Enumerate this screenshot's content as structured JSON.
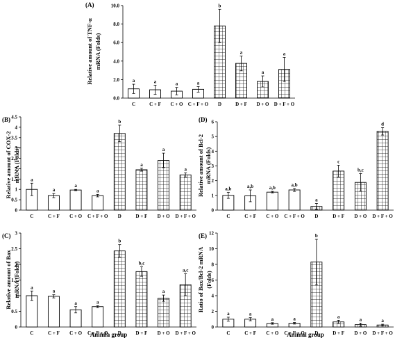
{
  "chart_data": [
    {
      "panel": "(A)",
      "type": "bar",
      "ylabel": [
        "Relative amount of TNF-α",
        "mRNA (Folds)"
      ],
      "xlabel": "",
      "ylim": [
        0,
        10
      ],
      "yticks": [
        0,
        2,
        4,
        6,
        8,
        10
      ],
      "ytick_labels": [
        "0.0",
        "2.0",
        "4.0",
        "6.0",
        "8.0",
        "10.0"
      ],
      "categories": [
        "C",
        "C + F",
        "C + O",
        "C + F + O",
        "D",
        "D + F",
        "D + O",
        "D + F + O"
      ],
      "values": [
        1.0,
        0.9,
        0.75,
        0.95,
        7.8,
        3.75,
        1.8,
        3.1
      ],
      "errors": [
        0.5,
        0.5,
        0.4,
        0.3,
        1.8,
        0.8,
        0.6,
        1.3
      ],
      "labels": [
        "a",
        "a",
        "a",
        "a",
        "b",
        "a",
        "a",
        "a"
      ],
      "hatched": [
        false,
        false,
        false,
        false,
        true,
        true,
        true,
        true
      ]
    },
    {
      "panel": "(B)",
      "type": "bar",
      "ylabel": [
        "Relative amount of COX-2",
        "mRNA (Folds)"
      ],
      "xlabel": "",
      "ylim": [
        0,
        4.5
      ],
      "yticks": [
        0,
        0.5,
        1,
        1.5,
        2,
        2.5,
        3,
        3.5,
        4,
        4.5
      ],
      "ytick_labels": [
        "0",
        "0.5",
        "1",
        "1.5",
        "2",
        "2.5",
        "3",
        "3.5",
        "4",
        "4.5"
      ],
      "categories": [
        "C",
        "C + F",
        "C + O",
        "C + F + O",
        "D",
        "D + F",
        "D + O",
        "D + F + O"
      ],
      "values": [
        1.0,
        0.7,
        0.97,
        0.7,
        3.7,
        1.95,
        2.4,
        1.7
      ],
      "errors": [
        0.3,
        0.1,
        0.03,
        0.06,
        0.4,
        0.07,
        0.35,
        0.1
      ],
      "labels": [
        "a",
        "a",
        "a",
        "a",
        "b",
        "a",
        "a",
        "a"
      ],
      "hatched": [
        false,
        false,
        false,
        false,
        true,
        true,
        true,
        true
      ]
    },
    {
      "panel": "(C)",
      "type": "bar",
      "ylabel": [
        "Relative amount of Bax",
        "mRNA (Folds)"
      ],
      "xlabel": "Animla group",
      "ylim": [
        0,
        3
      ],
      "yticks": [
        0,
        0.5,
        1,
        1.5,
        2,
        2.5,
        3
      ],
      "ytick_labels": [
        "0",
        "0.5",
        "1",
        "1.5",
        "2",
        "2.5",
        "3"
      ],
      "categories": [
        "C",
        "C + F",
        "C + O",
        "C + F + O",
        "D",
        "D + F",
        "D + O",
        "D + F + O"
      ],
      "values": [
        1.0,
        0.98,
        0.55,
        0.65,
        2.43,
        1.77,
        0.92,
        1.35
      ],
      "errors": [
        0.15,
        0.05,
        0.1,
        0.03,
        0.2,
        0.15,
        0.1,
        0.35
      ],
      "labels": [
        "a",
        "a",
        "a",
        "a",
        "b",
        "b,c",
        "a",
        "a,c"
      ],
      "hatched": [
        false,
        false,
        false,
        false,
        true,
        true,
        true,
        true
      ]
    },
    {
      "panel": "(D)",
      "type": "bar",
      "ylabel": [
        "Relative amount of Bcl-2",
        "mRNA (Folds)"
      ],
      "xlabel": "",
      "ylim": [
        0,
        6
      ],
      "yticks": [
        0,
        1,
        2,
        3,
        4,
        5,
        6
      ],
      "ytick_labels": [
        "0",
        "1",
        "2",
        "3",
        "4",
        "5",
        "6"
      ],
      "categories": [
        "C",
        "C + F",
        "C + O",
        "C + F + O",
        "D",
        "D + F",
        "D + O",
        "D + F + O"
      ],
      "values": [
        1.0,
        0.97,
        1.22,
        1.37,
        0.25,
        2.65,
        1.88,
        5.35
      ],
      "errors": [
        0.2,
        0.4,
        0.05,
        0.1,
        0.2,
        0.4,
        0.6,
        0.25
      ],
      "labels": [
        "a,b",
        "a,b",
        "a,b",
        "a,b",
        "a",
        "c",
        "b,c",
        "d"
      ],
      "hatched": [
        false,
        false,
        false,
        false,
        true,
        true,
        true,
        true
      ]
    },
    {
      "panel": "(E)",
      "type": "bar",
      "ylabel": [
        "Ratio of Bax/Bcl-2 mRNA",
        "(Folds)"
      ],
      "xlabel": "Animal group",
      "ylim": [
        0,
        12
      ],
      "yticks": [
        0,
        2,
        4,
        6,
        8,
        10,
        12
      ],
      "ytick_labels": [
        "0",
        "2",
        "4",
        "6",
        "8",
        "10",
        "12"
      ],
      "categories": [
        "C",
        "C + F",
        "C + O",
        "C + F + O",
        "D",
        "D + F",
        "D + O",
        "D + F + O"
      ],
      "values": [
        1.0,
        1.0,
        0.45,
        0.47,
        8.3,
        0.65,
        0.3,
        0.25
      ],
      "errors": [
        0.25,
        0.2,
        0.1,
        0.1,
        2.9,
        0.2,
        0.2,
        0.1
      ],
      "labels": [
        "a",
        "a",
        "a",
        "a",
        "b",
        "a",
        "a",
        "a"
      ],
      "hatched": [
        false,
        false,
        false,
        false,
        true,
        true,
        true,
        true
      ]
    }
  ]
}
